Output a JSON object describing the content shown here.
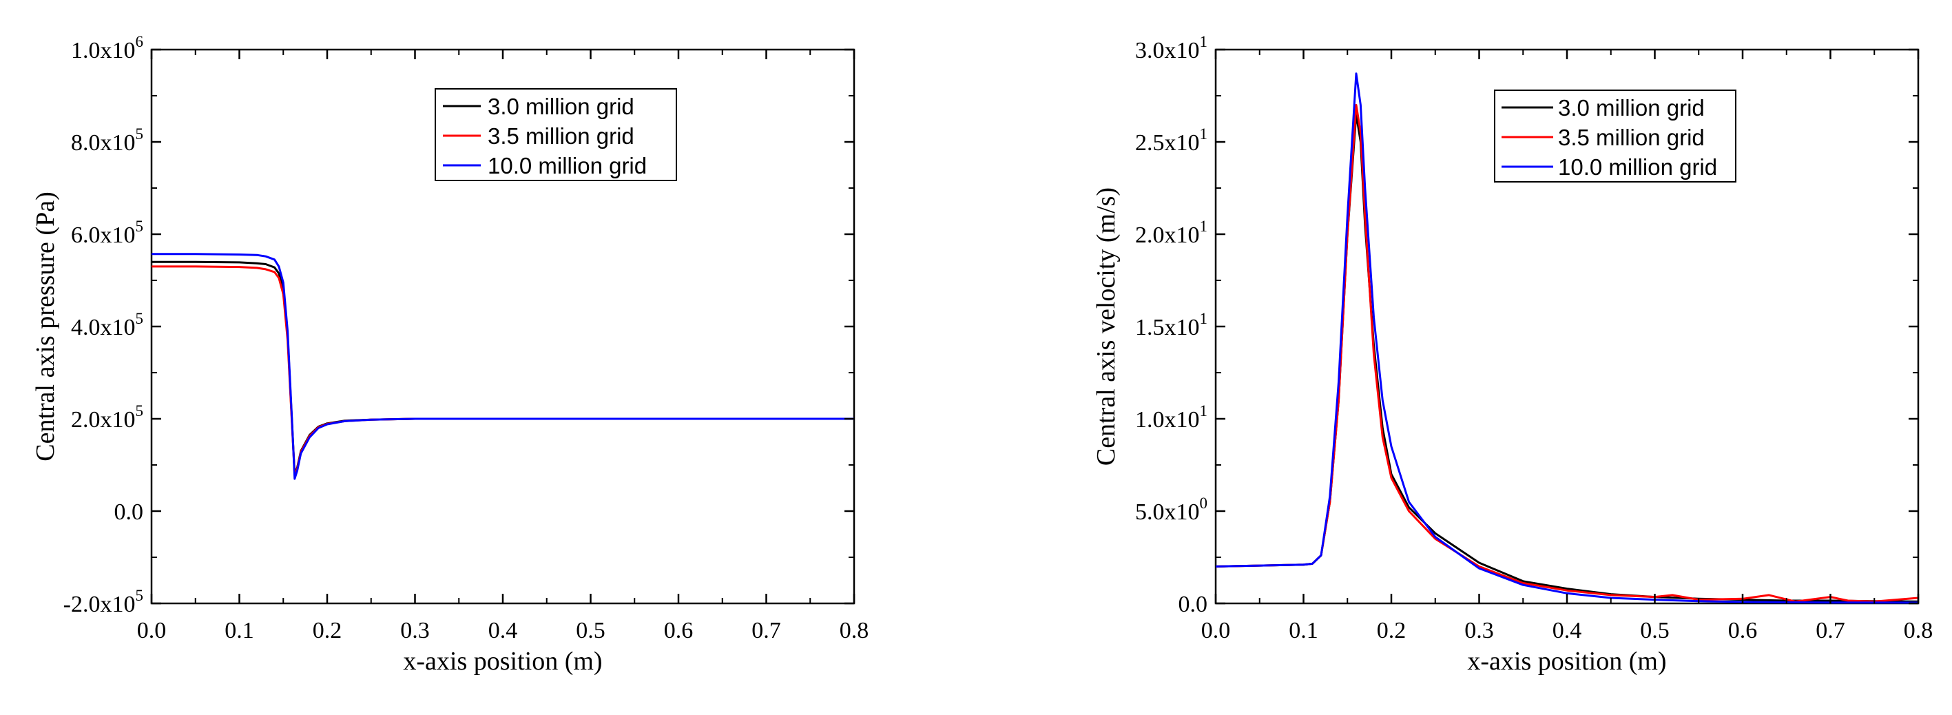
{
  "chart_data": [
    {
      "type": "line",
      "title": "",
      "xlabel": "x-axis position (m)",
      "ylabel": "Central axis pressure (Pa)",
      "xlim": [
        0,
        0.8
      ],
      "ylim": [
        -200000,
        1000000
      ],
      "xticks": [
        0.0,
        0.1,
        0.2,
        0.3,
        0.4,
        0.5,
        0.6,
        0.7,
        0.8
      ],
      "xtick_labels": [
        "0.0",
        "0.1",
        "0.2",
        "0.3",
        "0.4",
        "0.5",
        "0.6",
        "0.7",
        "0.8"
      ],
      "yticks": [
        {
          "value": -200000,
          "mant": "-2.0x10",
          "exp": "5"
        },
        {
          "value": 0,
          "mant": "0.0",
          "exp": ""
        },
        {
          "value": 200000,
          "mant": "2.0x10",
          "exp": "5"
        },
        {
          "value": 400000,
          "mant": "4.0x10",
          "exp": "5"
        },
        {
          "value": 600000,
          "mant": "6.0x10",
          "exp": "5"
        },
        {
          "value": 800000,
          "mant": "8.0x10",
          "exp": "5"
        },
        {
          "value": 1000000,
          "mant": "1.0x10",
          "exp": "6"
        }
      ],
      "legend": {
        "position": "top-right"
      },
      "series": [
        {
          "name": "3.0 million grid",
          "color": "#000000",
          "x": [
            0,
            0.05,
            0.1,
            0.12,
            0.13,
            0.14,
            0.145,
            0.15,
            0.155,
            0.16,
            0.163,
            0.166,
            0.17,
            0.18,
            0.19,
            0.2,
            0.22,
            0.25,
            0.3,
            0.4,
            0.5,
            0.6,
            0.7,
            0.8
          ],
          "y": [
            540000,
            540000,
            539000,
            537000,
            535000,
            528000,
            515000,
            480000,
            380000,
            190000,
            80000,
            95000,
            130000,
            165000,
            183000,
            190000,
            196000,
            198000,
            200000,
            200000,
            200000,
            200000,
            200000,
            200000
          ]
        },
        {
          "name": "3.5 million grid",
          "color": "#ff0000",
          "x": [
            0,
            0.05,
            0.1,
            0.12,
            0.13,
            0.14,
            0.145,
            0.15,
            0.155,
            0.16,
            0.163,
            0.166,
            0.17,
            0.18,
            0.19,
            0.2,
            0.22,
            0.25,
            0.3,
            0.4,
            0.5,
            0.6,
            0.7,
            0.8
          ],
          "y": [
            530000,
            530000,
            529000,
            527000,
            524000,
            518000,
            505000,
            470000,
            370000,
            185000,
            78000,
            92000,
            128000,
            163000,
            182000,
            189000,
            195000,
            198000,
            200000,
            200000,
            200000,
            200000,
            200000,
            200000
          ]
        },
        {
          "name": "10.0 million grid",
          "color": "#0000ff",
          "x": [
            0,
            0.05,
            0.1,
            0.12,
            0.13,
            0.14,
            0.145,
            0.15,
            0.155,
            0.16,
            0.163,
            0.166,
            0.17,
            0.18,
            0.19,
            0.2,
            0.22,
            0.25,
            0.3,
            0.4,
            0.5,
            0.6,
            0.7,
            0.8
          ],
          "y": [
            557000,
            557000,
            556000,
            555000,
            552000,
            545000,
            530000,
            495000,
            390000,
            195000,
            70000,
            88000,
            125000,
            160000,
            180000,
            188000,
            195000,
            198000,
            200000,
            200000,
            200000,
            200000,
            200000,
            200000
          ]
        }
      ]
    },
    {
      "type": "line",
      "title": "",
      "xlabel": "x-axis position (m)",
      "ylabel": "Central axis velocity (m/s)",
      "xlim": [
        0,
        0.8
      ],
      "ylim": [
        0,
        30
      ],
      "xticks": [
        0.0,
        0.1,
        0.2,
        0.3,
        0.4,
        0.5,
        0.6,
        0.7,
        0.8
      ],
      "xtick_labels": [
        "0.0",
        "0.1",
        "0.2",
        "0.3",
        "0.4",
        "0.5",
        "0.6",
        "0.7",
        "0.8"
      ],
      "yticks": [
        {
          "value": 0,
          "mant": "0.0",
          "exp": ""
        },
        {
          "value": 5,
          "mant": "5.0x10",
          "exp": "0"
        },
        {
          "value": 10,
          "mant": "1.0x10",
          "exp": "1"
        },
        {
          "value": 15,
          "mant": "1.5x10",
          "exp": "1"
        },
        {
          "value": 20,
          "mant": "2.0x10",
          "exp": "1"
        },
        {
          "value": 25,
          "mant": "2.5x10",
          "exp": "1"
        },
        {
          "value": 30,
          "mant": "3.0x10",
          "exp": "1"
        }
      ],
      "legend": {
        "position": "top-right"
      },
      "series": [
        {
          "name": "3.0 million grid",
          "color": "#000000",
          "x": [
            0,
            0.05,
            0.1,
            0.11,
            0.12,
            0.13,
            0.14,
            0.15,
            0.16,
            0.165,
            0.17,
            0.18,
            0.19,
            0.2,
            0.22,
            0.25,
            0.3,
            0.35,
            0.4,
            0.45,
            0.5,
            0.55,
            0.6,
            0.65,
            0.7,
            0.75,
            0.8
          ],
          "y": [
            2.0,
            2.05,
            2.1,
            2.15,
            2.6,
            5.5,
            11,
            20,
            26.5,
            25,
            20.5,
            14,
            9.5,
            7,
            5.2,
            3.8,
            2.2,
            1.2,
            0.8,
            0.5,
            0.35,
            0.25,
            0.2,
            0.15,
            0.15,
            0.12,
            0.1
          ]
        },
        {
          "name": "3.5 million grid",
          "color": "#ff0000",
          "x": [
            0,
            0.05,
            0.1,
            0.11,
            0.12,
            0.13,
            0.14,
            0.15,
            0.16,
            0.165,
            0.17,
            0.18,
            0.19,
            0.2,
            0.22,
            0.25,
            0.3,
            0.35,
            0.4,
            0.45,
            0.5,
            0.52,
            0.55,
            0.6,
            0.63,
            0.66,
            0.7,
            0.72,
            0.75,
            0.8
          ],
          "y": [
            2.0,
            2.05,
            2.1,
            2.15,
            2.6,
            5.5,
            11,
            20,
            27,
            25.5,
            21,
            13.5,
            9,
            6.8,
            5,
            3.5,
            2.0,
            1.1,
            0.7,
            0.45,
            0.35,
            0.45,
            0.2,
            0.25,
            0.45,
            0.1,
            0.35,
            0.15,
            0.1,
            0.3
          ]
        },
        {
          "name": "10.0 million grid",
          "color": "#0000ff",
          "x": [
            0,
            0.05,
            0.1,
            0.11,
            0.12,
            0.13,
            0.14,
            0.15,
            0.16,
            0.165,
            0.17,
            0.18,
            0.19,
            0.2,
            0.22,
            0.25,
            0.3,
            0.35,
            0.4,
            0.45,
            0.5,
            0.55,
            0.6,
            0.65,
            0.7,
            0.75,
            0.8
          ],
          "y": [
            2.0,
            2.05,
            2.1,
            2.15,
            2.6,
            5.8,
            12,
            21,
            28.7,
            27,
            22.5,
            15.5,
            11,
            8.5,
            5.5,
            3.6,
            1.9,
            1.0,
            0.55,
            0.3,
            0.2,
            0.12,
            0.08,
            0.06,
            0.05,
            0.05,
            0.04
          ]
        }
      ]
    }
  ]
}
